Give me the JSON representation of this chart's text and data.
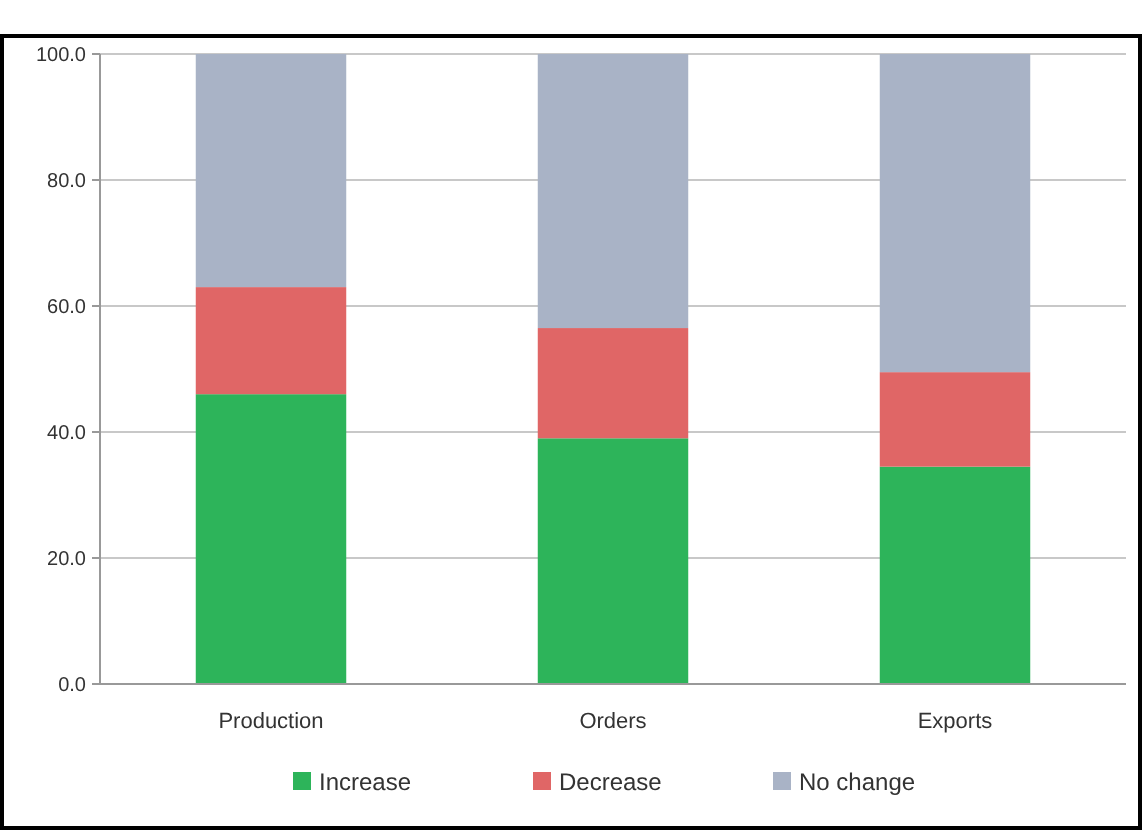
{
  "chart_data": {
    "type": "bar",
    "stacked": true,
    "categories": [
      "Production",
      "Orders",
      "Exports"
    ],
    "series": [
      {
        "name": "Increase",
        "color": "#2db45a",
        "values": [
          46,
          39,
          34.5
        ]
      },
      {
        "name": "Decrease",
        "color": "#e06666",
        "values": [
          17,
          17.5,
          15
        ]
      },
      {
        "name": "No change",
        "color": "#a9b3c6",
        "values": [
          37,
          43.5,
          50.5
        ]
      }
    ],
    "ylim": [
      0,
      100
    ],
    "yticks": [
      {
        "value": 0,
        "label": "0.0"
      },
      {
        "value": 20,
        "label": "20.0"
      },
      {
        "value": 40,
        "label": "40.0"
      },
      {
        "value": 60,
        "label": "60.0"
      },
      {
        "value": 80,
        "label": "80.0"
      },
      {
        "value": 100,
        "label": "100.0"
      }
    ],
    "grid": "y",
    "legend": "bottom"
  }
}
